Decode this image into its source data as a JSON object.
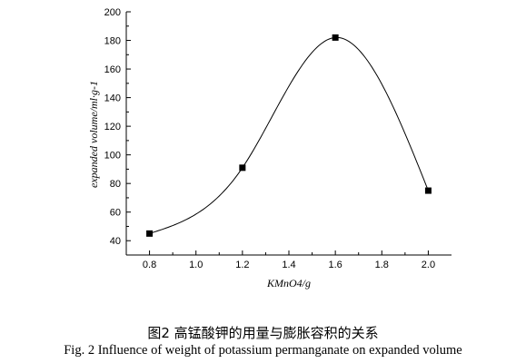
{
  "chart_data": {
    "type": "line",
    "x": [
      0.8,
      1.2,
      1.6,
      2.0
    ],
    "y": [
      45,
      91,
      182,
      75
    ],
    "xlim": [
      0.7,
      2.1
    ],
    "ylim": [
      30,
      200
    ],
    "xticks": [
      "0.8",
      "1.0",
      "1.2",
      "1.4",
      "1.6",
      "1.8",
      "2.0"
    ],
    "yticks": [
      "40",
      "60",
      "80",
      "100",
      "120",
      "140",
      "160",
      "180",
      "200"
    ],
    "xlabel": "KMnO4/g",
    "ylabel": "expanded volume/ml·g-1",
    "grid": false,
    "line_style": "smooth spline through square markers"
  },
  "caption": {
    "zh": "图2  高锰酸钾的用量与膨胀容积的关系",
    "en": "Fig. 2 Influence of weight of potassium permanganate on expanded volume"
  }
}
